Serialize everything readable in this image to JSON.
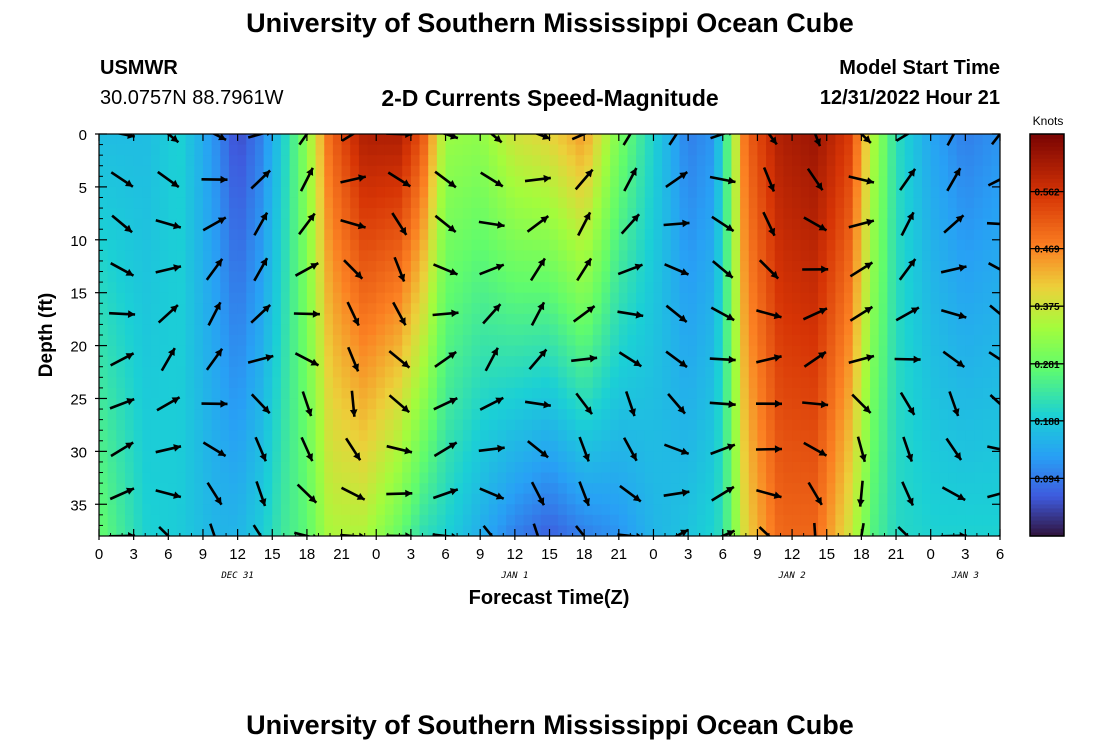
{
  "header": {
    "title": "University of Southern Mississippi Ocean Cube",
    "station_id": "USMWR",
    "coordinates": "30.0757N  88.7961W",
    "plot_title": "2-D Currents Speed-Magnitude",
    "model_start_label": "Model Start Time",
    "model_start_value": "12/31/2022 Hour 21"
  },
  "footer_title": "University of Southern Mississippi Ocean Cube",
  "chart_data": {
    "type": "heatmap",
    "subtype": "depth-time current speed section with velocity vectors",
    "xlabel": "Forecast Time(Z)",
    "ylabel": "Depth (ft)",
    "x_range_hours": [
      0,
      78
    ],
    "x_tick_labels": [
      "0",
      "3",
      "6",
      "9",
      "12",
      "15",
      "18",
      "21",
      "0",
      "3",
      "6",
      "9",
      "12",
      "15",
      "18",
      "21",
      "0",
      "3",
      "6",
      "9",
      "12",
      "15",
      "18",
      "21",
      "0",
      "3",
      "6"
    ],
    "day_labels": [
      {
        "text": "DEC 31",
        "at_hour": 12
      },
      {
        "text": "JAN 1",
        "at_hour": 36
      },
      {
        "text": "JAN 2",
        "at_hour": 60
      },
      {
        "text": "JAN 3",
        "at_hour": 75
      }
    ],
    "y_range_ft": [
      0,
      38
    ],
    "y_ticks": [
      0,
      5,
      10,
      15,
      20,
      25,
      30,
      35
    ],
    "y_inverted": true,
    "colorbar": {
      "label": "Knots",
      "min": 0.0,
      "max": 0.656,
      "tick_values": [
        0.094,
        0.188,
        0.281,
        0.375,
        0.469,
        0.562
      ],
      "tick_labels": [
        "0.094",
        "0.188",
        "0.281",
        "0.375",
        "0.469",
        "0.562"
      ],
      "colormap": "turbo"
    },
    "vector_depths_ft": [
      0,
      4.3,
      8.5,
      12.8,
      17.0,
      21.3,
      25.5,
      29.8,
      34.0,
      38.0
    ],
    "vector_times_hours": [
      2,
      6,
      10,
      14,
      18,
      22,
      26,
      30,
      34,
      38,
      42,
      46,
      50,
      54,
      58,
      62,
      66,
      70,
      74,
      78
    ],
    "speed_profile_by_hour": [
      {
        "hour": 0,
        "surface": 0.17,
        "bottom": 0.28
      },
      {
        "hour": 4,
        "surface": 0.17,
        "bottom": 0.2
      },
      {
        "hour": 7,
        "surface": 0.2,
        "bottom": 0.19
      },
      {
        "hour": 10,
        "surface": 0.12,
        "bottom": 0.16
      },
      {
        "hour": 12,
        "surface": 0.05,
        "bottom": 0.16
      },
      {
        "hour": 14,
        "surface": 0.1,
        "bottom": 0.19
      },
      {
        "hour": 16,
        "surface": 0.2,
        "bottom": 0.24
      },
      {
        "hour": 18,
        "surface": 0.32,
        "bottom": 0.27
      },
      {
        "hour": 20,
        "surface": 0.5,
        "bottom": 0.35
      },
      {
        "hour": 23,
        "surface": 0.6,
        "bottom": 0.35
      },
      {
        "hour": 26,
        "surface": 0.6,
        "bottom": 0.28
      },
      {
        "hour": 28,
        "surface": 0.52,
        "bottom": 0.22
      },
      {
        "hour": 30,
        "surface": 0.33,
        "bottom": 0.2
      },
      {
        "hour": 33,
        "surface": 0.32,
        "bottom": 0.15
      },
      {
        "hour": 36,
        "surface": 0.38,
        "bottom": 0.1
      },
      {
        "hour": 39,
        "surface": 0.4,
        "bottom": 0.07
      },
      {
        "hour": 42,
        "surface": 0.45,
        "bottom": 0.1
      },
      {
        "hour": 45,
        "surface": 0.3,
        "bottom": 0.12
      },
      {
        "hour": 48,
        "surface": 0.2,
        "bottom": 0.16
      },
      {
        "hour": 51,
        "surface": 0.1,
        "bottom": 0.18
      },
      {
        "hour": 53,
        "surface": 0.12,
        "bottom": 0.2
      },
      {
        "hour": 54,
        "surface": 0.2,
        "bottom": 0.22
      },
      {
        "hour": 56,
        "surface": 0.5,
        "bottom": 0.4
      },
      {
        "hour": 59,
        "surface": 0.6,
        "bottom": 0.5
      },
      {
        "hour": 62,
        "surface": 0.62,
        "bottom": 0.5
      },
      {
        "hour": 65,
        "surface": 0.55,
        "bottom": 0.38
      },
      {
        "hour": 67,
        "surface": 0.35,
        "bottom": 0.26
      },
      {
        "hour": 69,
        "surface": 0.22,
        "bottom": 0.21
      },
      {
        "hour": 72,
        "surface": 0.14,
        "bottom": 0.2
      },
      {
        "hour": 75,
        "surface": 0.1,
        "bottom": 0.2
      },
      {
        "hour": 78,
        "surface": 0.12,
        "bottom": 0.2
      }
    ]
  }
}
